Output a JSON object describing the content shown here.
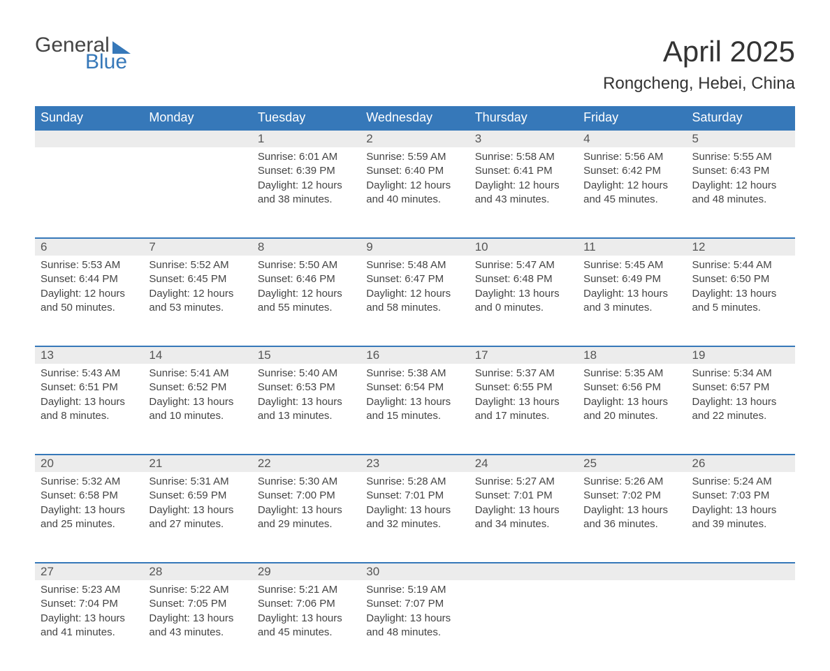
{
  "logo": {
    "general": "General",
    "blue": "Blue"
  },
  "title": "April 2025",
  "location": "Rongcheng, Hebei, China",
  "day_headers": [
    "Sunday",
    "Monday",
    "Tuesday",
    "Wednesday",
    "Thursday",
    "Friday",
    "Saturday"
  ],
  "colors": {
    "header_bg": "#3678b9",
    "header_text": "#ffffff",
    "daynum_bg": "#ececec",
    "row_border": "#3678b9",
    "body_text": "#444444",
    "title_text": "#333333",
    "logo_gray": "#444444",
    "logo_blue": "#3678b9",
    "page_bg": "#ffffff"
  },
  "typography": {
    "title_fontsize": 42,
    "location_fontsize": 24,
    "header_fontsize": 18,
    "daynum_fontsize": 17,
    "body_fontsize": 15,
    "logo_fontsize": 30
  },
  "weeks": [
    [
      null,
      null,
      {
        "n": "1",
        "sr": "Sunrise: 6:01 AM",
        "ss": "Sunset: 6:39 PM",
        "d1": "Daylight: 12 hours",
        "d2": "and 38 minutes."
      },
      {
        "n": "2",
        "sr": "Sunrise: 5:59 AM",
        "ss": "Sunset: 6:40 PM",
        "d1": "Daylight: 12 hours",
        "d2": "and 40 minutes."
      },
      {
        "n": "3",
        "sr": "Sunrise: 5:58 AM",
        "ss": "Sunset: 6:41 PM",
        "d1": "Daylight: 12 hours",
        "d2": "and 43 minutes."
      },
      {
        "n": "4",
        "sr": "Sunrise: 5:56 AM",
        "ss": "Sunset: 6:42 PM",
        "d1": "Daylight: 12 hours",
        "d2": "and 45 minutes."
      },
      {
        "n": "5",
        "sr": "Sunrise: 5:55 AM",
        "ss": "Sunset: 6:43 PM",
        "d1": "Daylight: 12 hours",
        "d2": "and 48 minutes."
      }
    ],
    [
      {
        "n": "6",
        "sr": "Sunrise: 5:53 AM",
        "ss": "Sunset: 6:44 PM",
        "d1": "Daylight: 12 hours",
        "d2": "and 50 minutes."
      },
      {
        "n": "7",
        "sr": "Sunrise: 5:52 AM",
        "ss": "Sunset: 6:45 PM",
        "d1": "Daylight: 12 hours",
        "d2": "and 53 minutes."
      },
      {
        "n": "8",
        "sr": "Sunrise: 5:50 AM",
        "ss": "Sunset: 6:46 PM",
        "d1": "Daylight: 12 hours",
        "d2": "and 55 minutes."
      },
      {
        "n": "9",
        "sr": "Sunrise: 5:48 AM",
        "ss": "Sunset: 6:47 PM",
        "d1": "Daylight: 12 hours",
        "d2": "and 58 minutes."
      },
      {
        "n": "10",
        "sr": "Sunrise: 5:47 AM",
        "ss": "Sunset: 6:48 PM",
        "d1": "Daylight: 13 hours",
        "d2": "and 0 minutes."
      },
      {
        "n": "11",
        "sr": "Sunrise: 5:45 AM",
        "ss": "Sunset: 6:49 PM",
        "d1": "Daylight: 13 hours",
        "d2": "and 3 minutes."
      },
      {
        "n": "12",
        "sr": "Sunrise: 5:44 AM",
        "ss": "Sunset: 6:50 PM",
        "d1": "Daylight: 13 hours",
        "d2": "and 5 minutes."
      }
    ],
    [
      {
        "n": "13",
        "sr": "Sunrise: 5:43 AM",
        "ss": "Sunset: 6:51 PM",
        "d1": "Daylight: 13 hours",
        "d2": "and 8 minutes."
      },
      {
        "n": "14",
        "sr": "Sunrise: 5:41 AM",
        "ss": "Sunset: 6:52 PM",
        "d1": "Daylight: 13 hours",
        "d2": "and 10 minutes."
      },
      {
        "n": "15",
        "sr": "Sunrise: 5:40 AM",
        "ss": "Sunset: 6:53 PM",
        "d1": "Daylight: 13 hours",
        "d2": "and 13 minutes."
      },
      {
        "n": "16",
        "sr": "Sunrise: 5:38 AM",
        "ss": "Sunset: 6:54 PM",
        "d1": "Daylight: 13 hours",
        "d2": "and 15 minutes."
      },
      {
        "n": "17",
        "sr": "Sunrise: 5:37 AM",
        "ss": "Sunset: 6:55 PM",
        "d1": "Daylight: 13 hours",
        "d2": "and 17 minutes."
      },
      {
        "n": "18",
        "sr": "Sunrise: 5:35 AM",
        "ss": "Sunset: 6:56 PM",
        "d1": "Daylight: 13 hours",
        "d2": "and 20 minutes."
      },
      {
        "n": "19",
        "sr": "Sunrise: 5:34 AM",
        "ss": "Sunset: 6:57 PM",
        "d1": "Daylight: 13 hours",
        "d2": "and 22 minutes."
      }
    ],
    [
      {
        "n": "20",
        "sr": "Sunrise: 5:32 AM",
        "ss": "Sunset: 6:58 PM",
        "d1": "Daylight: 13 hours",
        "d2": "and 25 minutes."
      },
      {
        "n": "21",
        "sr": "Sunrise: 5:31 AM",
        "ss": "Sunset: 6:59 PM",
        "d1": "Daylight: 13 hours",
        "d2": "and 27 minutes."
      },
      {
        "n": "22",
        "sr": "Sunrise: 5:30 AM",
        "ss": "Sunset: 7:00 PM",
        "d1": "Daylight: 13 hours",
        "d2": "and 29 minutes."
      },
      {
        "n": "23",
        "sr": "Sunrise: 5:28 AM",
        "ss": "Sunset: 7:01 PM",
        "d1": "Daylight: 13 hours",
        "d2": "and 32 minutes."
      },
      {
        "n": "24",
        "sr": "Sunrise: 5:27 AM",
        "ss": "Sunset: 7:01 PM",
        "d1": "Daylight: 13 hours",
        "d2": "and 34 minutes."
      },
      {
        "n": "25",
        "sr": "Sunrise: 5:26 AM",
        "ss": "Sunset: 7:02 PM",
        "d1": "Daylight: 13 hours",
        "d2": "and 36 minutes."
      },
      {
        "n": "26",
        "sr": "Sunrise: 5:24 AM",
        "ss": "Sunset: 7:03 PM",
        "d1": "Daylight: 13 hours",
        "d2": "and 39 minutes."
      }
    ],
    [
      {
        "n": "27",
        "sr": "Sunrise: 5:23 AM",
        "ss": "Sunset: 7:04 PM",
        "d1": "Daylight: 13 hours",
        "d2": "and 41 minutes."
      },
      {
        "n": "28",
        "sr": "Sunrise: 5:22 AM",
        "ss": "Sunset: 7:05 PM",
        "d1": "Daylight: 13 hours",
        "d2": "and 43 minutes."
      },
      {
        "n": "29",
        "sr": "Sunrise: 5:21 AM",
        "ss": "Sunset: 7:06 PM",
        "d1": "Daylight: 13 hours",
        "d2": "and 45 minutes."
      },
      {
        "n": "30",
        "sr": "Sunrise: 5:19 AM",
        "ss": "Sunset: 7:07 PM",
        "d1": "Daylight: 13 hours",
        "d2": "and 48 minutes."
      },
      null,
      null,
      null
    ]
  ]
}
